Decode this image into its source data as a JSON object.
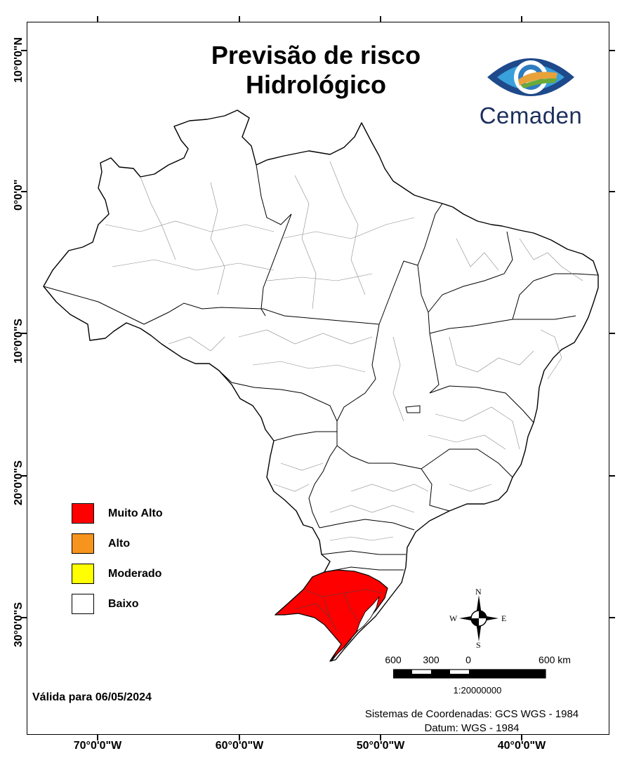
{
  "title_line1": "Previsão de risco",
  "title_line2": "Hidrológico",
  "logo": {
    "text": "Cemaden",
    "icon": "eye-logo-icon"
  },
  "legend": [
    {
      "label": "Muito Alto",
      "color": "#ff0000"
    },
    {
      "label": "Alto",
      "color": "#f7941d"
    },
    {
      "label": "Moderado",
      "color": "#ffff00"
    },
    {
      "label": "Baixo",
      "color": "#ffffff"
    }
  ],
  "validity": "Válida para 06/05/2024",
  "scale": {
    "labels": [
      "600",
      "300",
      "0",
      "600 km"
    ],
    "ratio": "1:20000000"
  },
  "compass": {
    "n": "N",
    "s": "S",
    "e": "E",
    "w": "W"
  },
  "coordinate_system": "Sistemas de Coordenadas: GCS WGS - 1984",
  "datum": "Datum: WGS - 1984",
  "longitude_labels": [
    "70°0'0\"W",
    "60°0'0\"W",
    "50°0'0\"W",
    "40°0'0\"W"
  ],
  "latitude_labels": [
    "10°0'0\"N",
    "0°0'0\"",
    "10°0'0\"S",
    "20°0'0\"S",
    "30°0'0\"S"
  ],
  "regions": [
    {
      "name": "Rio Grande do Sul",
      "risk": "Muito Alto"
    },
    {
      "name": "Restante do Brasil",
      "risk": "Baixo"
    }
  ]
}
